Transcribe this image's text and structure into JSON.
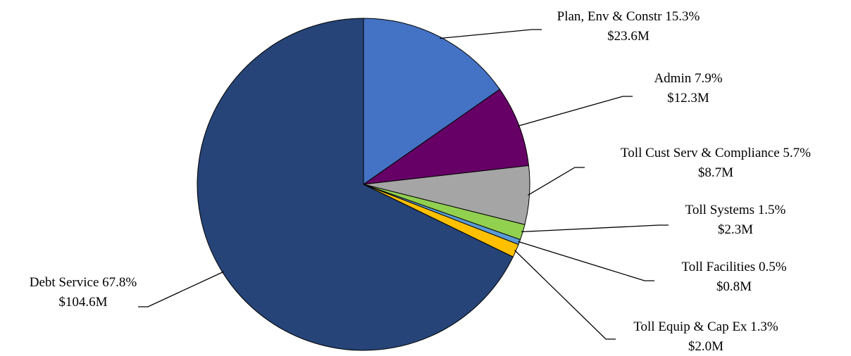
{
  "chart_data": {
    "type": "pie",
    "title": "",
    "slices": [
      {
        "label": "Plan, Env & Constr",
        "percent": 15.3,
        "percent_label": "15.3%",
        "amount": "$23.6M",
        "color": "#4472C4"
      },
      {
        "label": "Admin",
        "percent": 7.9,
        "percent_label": "7.9%",
        "amount": "$12.3M",
        "color": "#660066"
      },
      {
        "label": "Toll Cust Serv & Compliance",
        "percent": 5.7,
        "percent_label": "5.7%",
        "amount": "$8.7M",
        "color": "#A5A5A5"
      },
      {
        "label": "Toll Systems",
        "percent": 1.5,
        "percent_label": "1.5%",
        "amount": "$2.3M",
        "color": "#92D050"
      },
      {
        "label": "Toll Facilities",
        "percent": 0.5,
        "percent_label": "0.5%",
        "amount": "$0.8M",
        "color": "#5B9BD5"
      },
      {
        "label": "Toll Equip & Cap Ex",
        "percent": 1.3,
        "percent_label": "1.3%",
        "amount": "$2.0M",
        "color": "#FFC000"
      },
      {
        "label": "Debt Service",
        "percent": 67.8,
        "percent_label": "67.8%",
        "amount": "$104.6M",
        "color": "#264478"
      }
    ],
    "start_angle": "12 o'clock",
    "direction": "clockwise",
    "legend": "none",
    "data_labels": "outside with leader lines"
  }
}
